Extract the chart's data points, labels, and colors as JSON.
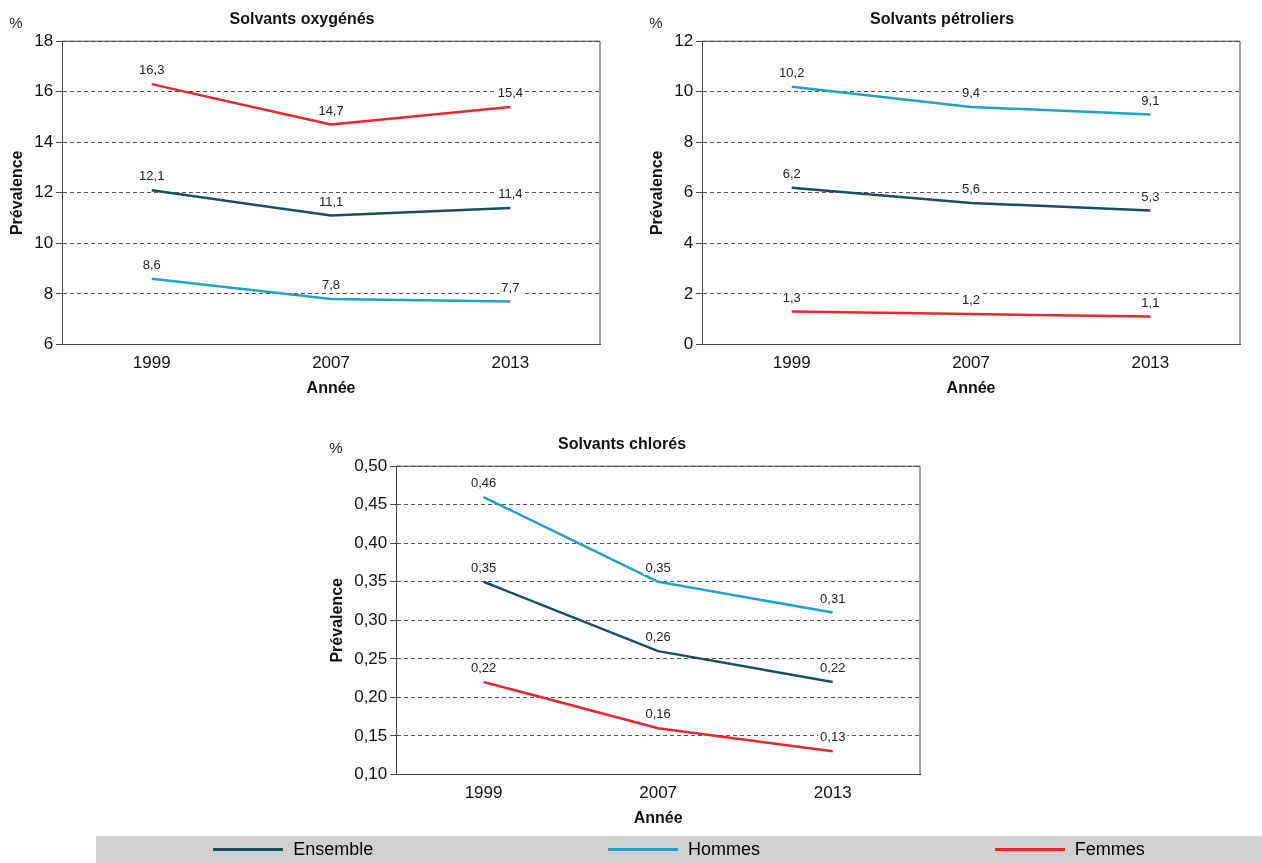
{
  "chart_data": [
    {
      "type": "line",
      "title": "Solvants oxygénés",
      "xlabel": "Année",
      "ylabel": "Prévalence",
      "annotations": [
        "%"
      ],
      "categories": [
        "1999",
        "2007",
        "2013"
      ],
      "ylim": [
        6,
        18
      ],
      "yticks": [
        6,
        8,
        10,
        12,
        14,
        16,
        18
      ],
      "grid": "y",
      "series": [
        {
          "color": "#1b4f5c",
          "values": [
            12.1,
            11.1,
            11.4
          ],
          "value_labels": [
            "12,1",
            "11,1",
            "11,4"
          ]
        },
        {
          "color": "#1fa2c4",
          "values": [
            8.6,
            7.8,
            7.7
          ],
          "value_labels": [
            "8,6",
            "7,8",
            "7,7"
          ]
        },
        {
          "color": "#e8262b",
          "values": [
            16.3,
            14.7,
            15.4
          ],
          "value_labels": [
            "16,3",
            "14,7",
            "15,4"
          ]
        }
      ]
    },
    {
      "type": "line",
      "title": "Solvants pétroliers",
      "xlabel": "Année",
      "ylabel": "Prévalence",
      "annotations": [
        "%"
      ],
      "categories": [
        "1999",
        "2007",
        "2013"
      ],
      "ylim": [
        0,
        12
      ],
      "yticks": [
        0,
        2,
        4,
        6,
        8,
        10,
        12
      ],
      "grid": "y",
      "series": [
        {
          "color": "#1b4f5c",
          "values": [
            6.2,
            5.6,
            5.3
          ],
          "value_labels": [
            "6,2",
            "5,6",
            "5,3"
          ]
        },
        {
          "color": "#1fa2c4",
          "values": [
            10.2,
            9.4,
            9.1
          ],
          "value_labels": [
            "10,2",
            "9,4",
            "9,1"
          ]
        },
        {
          "color": "#e8262b",
          "values": [
            1.3,
            1.2,
            1.1
          ],
          "value_labels": [
            "1,3",
            "1,2",
            "1,1"
          ]
        }
      ]
    },
    {
      "type": "line",
      "title": "Solvants chlorés",
      "xlabel": "Année",
      "ylabel": "Prévalence",
      "annotations": [
        "%"
      ],
      "categories": [
        "1999",
        "2007",
        "2013"
      ],
      "ylim": [
        0.1,
        0.5
      ],
      "yticks": [
        {
          "value": 0.1,
          "label": "0,10"
        },
        {
          "value": 0.15,
          "label": "0,15"
        },
        {
          "value": 0.2,
          "label": "0,20"
        },
        {
          "value": 0.25,
          "label": "0,25"
        },
        {
          "value": 0.3,
          "label": "0,30"
        },
        {
          "value": 0.35,
          "label": "0,35"
        },
        {
          "value": 0.4,
          "label": "0,40"
        },
        {
          "value": 0.45,
          "label": "0,45"
        },
        {
          "value": 0.5,
          "label": "0,50"
        }
      ],
      "grid": "y",
      "legend": "bottom",
      "series": [
        {
          "name": "Ensemble",
          "color": "#1b4f5c",
          "values": [
            0.35,
            0.26,
            0.22
          ],
          "value_labels": [
            "0,35",
            "0,26",
            "0,22"
          ]
        },
        {
          "name": "Hommes",
          "color": "#1fa2c4",
          "values": [
            0.46,
            0.35,
            0.31
          ],
          "value_labels": [
            "0,46",
            "0,35",
            "0,31"
          ]
        },
        {
          "name": "Femmes",
          "color": "#e8262b",
          "values": [
            0.22,
            0.16,
            0.13
          ],
          "value_labels": [
            "0,22",
            "0,16",
            "0,13"
          ]
        }
      ]
    }
  ]
}
